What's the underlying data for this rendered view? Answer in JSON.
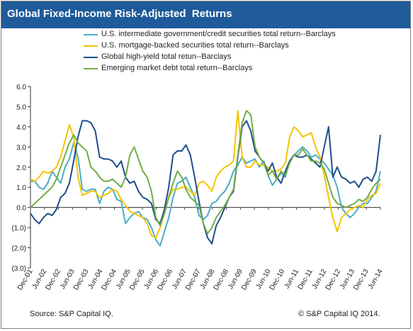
{
  "header": {
    "title": "Global Fixed-Income Risk-Adjusted  Returns"
  },
  "footer": {
    "source": "Source: S&P Capital IQ.",
    "copyright": "© S&P Capital IQ  2014."
  },
  "chart_data": {
    "type": "line",
    "title": "Global Fixed-Income Risk-Adjusted  Returns",
    "xlabel": "",
    "ylabel": "",
    "ylim": [
      -3.0,
      6.0
    ],
    "y_ticks": [
      6.0,
      5.0,
      4.0,
      3.0,
      2.0,
      1.0,
      0.0,
      -1.0,
      -2.0,
      -3.0
    ],
    "y_tick_labels": [
      "6.0",
      "5.0",
      "4.0",
      "3.0",
      "2.0",
      "1.0",
      "0.0",
      "(1.0)",
      "(2.0)",
      "(3.0)"
    ],
    "x_tick_labels": [
      "Dec-01",
      "Jun-02",
      "Dec-02",
      "Jun-03",
      "Dec-03",
      "Jun-04",
      "Dec-04",
      "Jun-05",
      "Dec-05",
      "Jun-06",
      "Dec-06",
      "Jun-07",
      "Dec-07",
      "Jun-08",
      "Dec-08",
      "Jun-09",
      "Dec-09",
      "Jun-10",
      "Dec-10",
      "Jun-11",
      "Dec-11",
      "Jun-12",
      "Dec-12",
      "Jun-13",
      "Dec-13",
      "Jun-14"
    ],
    "x_period_months": 6,
    "grid": false,
    "legend_position": "top",
    "colors": {
      "axis": "#333333",
      "title_bar": "#1f5b9b"
    },
    "series": [
      {
        "name": "U.S. intermediate government/credit securities total return--Barclays",
        "color": "#4bacc6",
        "values": [
          1.3,
          1.3,
          1.0,
          0.9,
          1.2,
          1.8,
          1.5,
          1.2,
          2.0,
          2.4,
          3.2,
          2.5,
          0.9,
          0.8,
          0.9,
          0.9,
          0.2,
          0.8,
          1.0,
          0.9,
          0.4,
          0.3,
          -0.8,
          -0.5,
          -0.3,
          -0.2,
          -0.5,
          -0.6,
          -1.0,
          -1.6,
          -1.9,
          -1.2,
          -0.5,
          0.5,
          1.2,
          1.3,
          1.5,
          1.0,
          0.5,
          -0.4,
          -0.6,
          -0.4,
          0.2,
          0.3,
          0.6,
          0.8,
          1.2,
          1.8,
          2.1,
          2.5,
          2.2,
          2.3,
          2.4,
          2.0,
          2.3,
          1.6,
          1.1,
          1.4,
          1.7,
          1.5,
          2.3,
          2.6,
          2.8,
          3.0,
          2.8,
          2.5,
          2.6,
          2.4,
          2.2,
          1.9,
          1.6,
          1.0,
          0.0,
          -0.3,
          -0.5,
          -0.3,
          0.0,
          0.2,
          0.2,
          0.5,
          0.8,
          1.8
        ]
      },
      {
        "name": "U.S. mortgage-backed securities total return--Barclays",
        "color": "#f5c400",
        "values": [
          1.4,
          1.3,
          1.5,
          1.8,
          1.7,
          1.8,
          2.0,
          2.5,
          3.3,
          4.1,
          3.5,
          1.5,
          0.6,
          0.7,
          0.8,
          0.8,
          0.5,
          0.6,
          0.7,
          0.9,
          0.8,
          0.4,
          0.1,
          -0.2,
          -0.3,
          -0.4,
          -0.5,
          -0.8,
          -1.4,
          -1.5,
          -1.0,
          -0.3,
          0.5,
          0.9,
          0.9,
          1.0,
          1.0,
          0.8,
          0.6,
          1.2,
          1.3,
          1.1,
          0.8,
          1.5,
          1.8,
          2.0,
          2.1,
          2.3,
          4.8,
          2.5,
          2.0,
          2.0,
          2.3,
          2.1,
          2.1,
          2.0,
          1.8,
          1.8,
          1.9,
          2.2,
          3.5,
          4.0,
          3.8,
          3.5,
          3.6,
          3.7,
          3.0,
          2.5,
          1.6,
          0.5,
          -0.5,
          -1.2,
          -0.5,
          -0.3,
          -0.1,
          0.0,
          0.1,
          0.0,
          0.4,
          0.6,
          0.7,
          1.2
        ]
      },
      {
        "name": "Global high-yield total retun--Barclays",
        "color": "#1f4e8c",
        "values": [
          -0.3,
          -0.6,
          -0.8,
          -0.5,
          -0.3,
          -0.4,
          -0.1,
          0.5,
          0.7,
          1.2,
          2.3,
          3.5,
          4.3,
          4.3,
          4.2,
          3.8,
          2.5,
          2.4,
          2.4,
          2.3,
          2.0,
          2.3,
          1.5,
          1.2,
          1.3,
          0.8,
          0.5,
          0.4,
          0.2,
          -0.6,
          -0.8,
          -0.1,
          1.0,
          2.6,
          2.8,
          2.8,
          3.1,
          2.6,
          1.5,
          0.3,
          -0.8,
          -1.5,
          -1.8,
          -0.9,
          -0.5,
          0.0,
          0.5,
          0.8,
          2.5,
          4.0,
          4.3,
          3.8,
          2.8,
          2.5,
          2.2,
          1.8,
          2.2,
          1.5,
          1.2,
          1.8,
          2.3,
          2.6,
          2.5,
          2.5,
          2.6,
          2.4,
          2.2,
          2.0,
          3.0,
          4.0,
          1.5,
          2.0,
          1.5,
          1.4,
          1.2,
          1.3,
          1.0,
          1.4,
          1.5,
          1.3,
          1.8,
          3.6
        ]
      },
      {
        "name": "Emerging market debt total return--Barclays",
        "color": "#70ad47",
        "values": [
          0.0,
          0.2,
          0.4,
          0.6,
          0.8,
          1.0,
          1.4,
          2.0,
          2.6,
          3.2,
          3.6,
          3.2,
          3.0,
          2.8,
          2.0,
          1.8,
          1.5,
          1.3,
          1.3,
          1.4,
          1.2,
          1.0,
          1.5,
          2.6,
          3.0,
          2.4,
          1.8,
          1.5,
          0.8,
          -0.5,
          -0.9,
          -0.3,
          0.5,
          1.2,
          1.8,
          1.5,
          0.9,
          0.5,
          0.3,
          0.1,
          -0.8,
          -1.3,
          -1.0,
          -0.5,
          -0.2,
          0.1,
          0.5,
          0.9,
          2.6,
          4.2,
          4.8,
          4.6,
          3.0,
          2.5,
          2.2,
          1.6,
          1.8,
          1.4,
          1.8,
          1.6,
          2.2,
          2.6,
          2.6,
          2.9,
          2.6,
          2.3,
          2.3,
          2.2,
          1.9,
          1.2,
          0.5,
          0.2,
          0.1,
          0.0,
          0.1,
          0.2,
          0.4,
          0.3,
          0.5,
          0.9,
          1.2,
          1.4
        ]
      }
    ]
  }
}
